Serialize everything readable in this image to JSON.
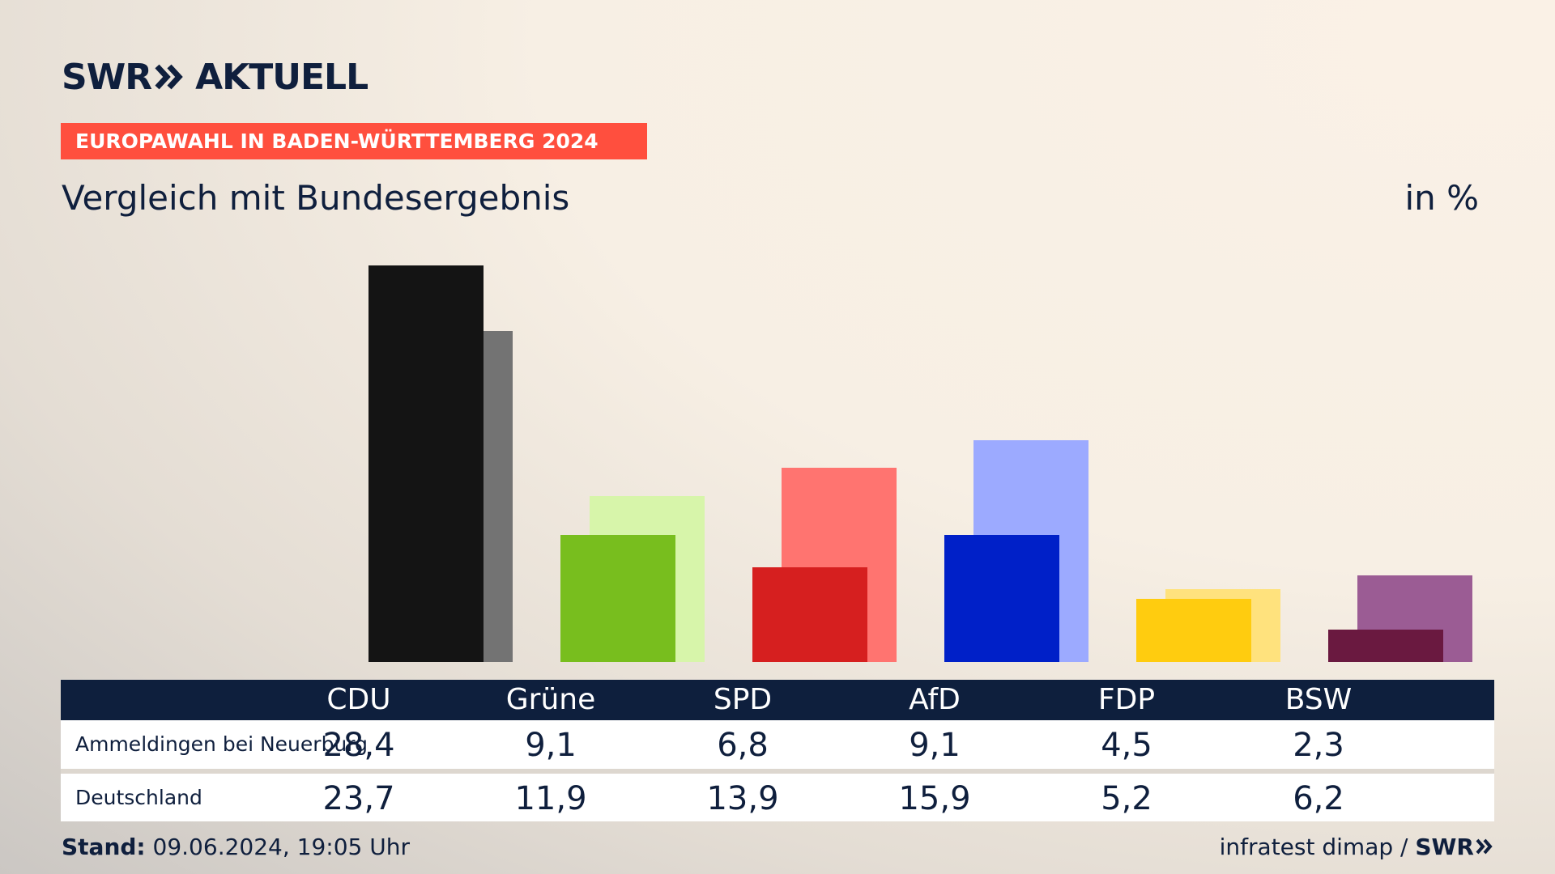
{
  "logo": {
    "left": "SWR",
    "right": "AKTUELL"
  },
  "banner": "EUROPAWAHL IN BADEN-WÜRTTEMBERG 2024",
  "chart_title": "Vergleich mit Bundesergebnis",
  "unit": "in %",
  "colors": {
    "accent": "#ff4f3e",
    "navy": "#0e1f3d"
  },
  "chart_data": {
    "type": "bar",
    "categories": [
      "CDU",
      "Grüne",
      "SPD",
      "AfD",
      "FDP",
      "BSW"
    ],
    "series": [
      {
        "name": "Ammeldingen bei Neuerburg",
        "values": [
          28.4,
          9.1,
          6.8,
          9.1,
          4.5,
          2.3
        ],
        "colors": [
          "#141414",
          "#78be1e",
          "#d61f1f",
          "#0020c8",
          "#ffcc0f",
          "#6a1940"
        ]
      },
      {
        "name": "Deutschland",
        "values": [
          23.7,
          11.9,
          13.9,
          15.9,
          5.2,
          6.2
        ],
        "colors": [
          "#737373",
          "#d7f5aa",
          "#ff7470",
          "#9caaff",
          "#ffe27d",
          "#9b5c94"
        ]
      }
    ],
    "ylim": [
      0,
      28.4
    ]
  },
  "table": {
    "headers": [
      "CDU",
      "Grüne",
      "SPD",
      "AfD",
      "FDP",
      "BSW"
    ],
    "rows": [
      {
        "label": "Ammeldingen bei Neuerburg",
        "values": [
          "28,4",
          "9,1",
          "6,8",
          "9,1",
          "4,5",
          "2,3"
        ]
      },
      {
        "label": "Deutschland",
        "values": [
          "23,7",
          "11,9",
          "13,9",
          "15,9",
          "5,2",
          "6,2"
        ]
      }
    ]
  },
  "footer": {
    "stand_label": "Stand:",
    "stand_value": "09.06.2024, 19:05 Uhr",
    "source": "infratest dimap /",
    "brand": "SWR"
  }
}
